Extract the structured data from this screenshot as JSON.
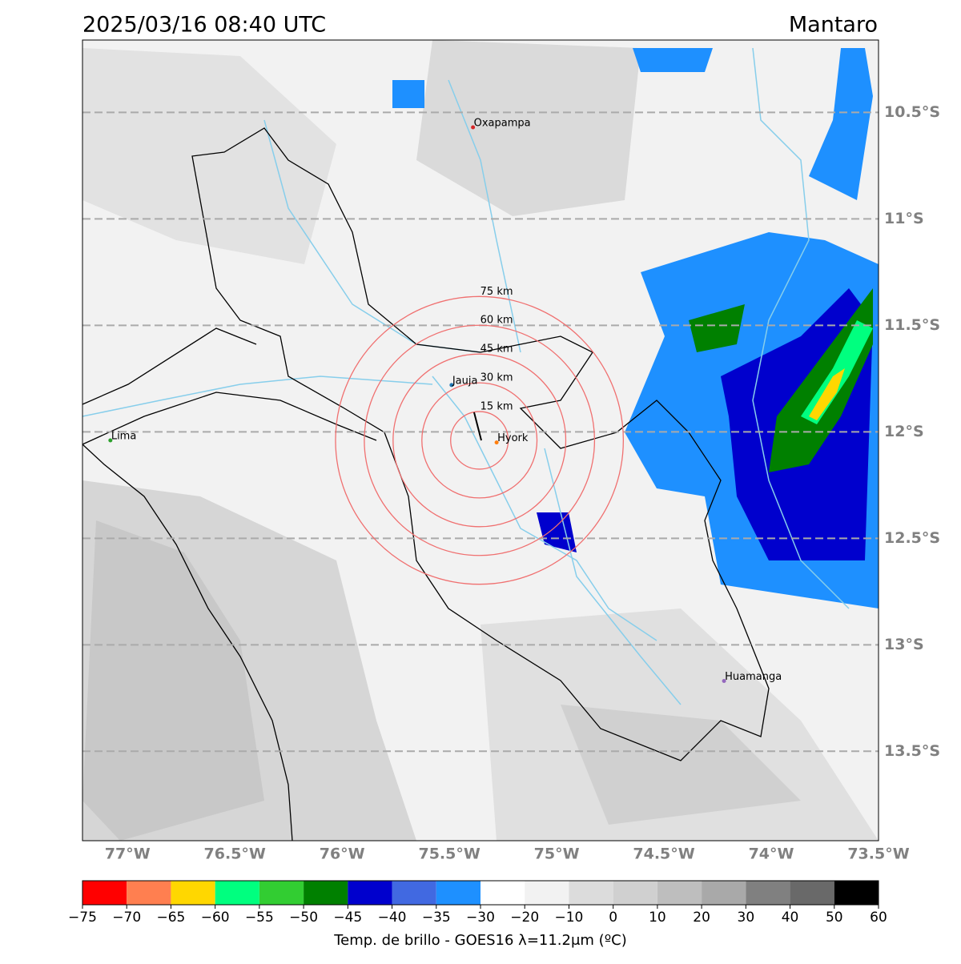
{
  "header": {
    "title": "2025/03/16 08:40 UTC",
    "region": "Mantaro"
  },
  "map": {
    "xlim": [
      -77.21,
      -73.5
    ],
    "ylim": [
      -13.92,
      -10.16
    ],
    "xticks": [
      {
        "value": -77,
        "label": "77°W"
      },
      {
        "value": -76.5,
        "label": "76.5°W"
      },
      {
        "value": -76,
        "label": "76°W"
      },
      {
        "value": -75.5,
        "label": "75.5°W"
      },
      {
        "value": -75,
        "label": "75°W"
      },
      {
        "value": -74.5,
        "label": "74.5°W"
      },
      {
        "value": -74,
        "label": "74°W"
      },
      {
        "value": -73.5,
        "label": "73.5°W"
      }
    ],
    "yticks": [
      {
        "value": -10.5,
        "label": "10.5°S"
      },
      {
        "value": -11,
        "label": "11°S"
      },
      {
        "value": -11.5,
        "label": "11.5°S"
      },
      {
        "value": -12,
        "label": "12°S"
      },
      {
        "value": -12.5,
        "label": "12.5°S"
      },
      {
        "value": -13,
        "label": "13°S"
      },
      {
        "value": -13.5,
        "label": "13.5°S"
      }
    ],
    "grid": true,
    "cities": [
      {
        "name": "Oxapampa",
        "lon": -75.39,
        "lat": -10.57,
        "color": "#d62728"
      },
      {
        "name": "Jauja",
        "lon": -75.49,
        "lat": -11.78,
        "color": "#1f77b4"
      },
      {
        "name": "Lima",
        "lon": -77.08,
        "lat": -12.04,
        "color": "#2ca02c"
      },
      {
        "name": "Hyork",
        "lon": -75.28,
        "lat": -12.05,
        "color": "#ff7f0e"
      },
      {
        "name": "Huamanga",
        "lon": -74.22,
        "lat": -13.17,
        "color": "#9467bd"
      }
    ],
    "rings": {
      "center_lon": -75.36,
      "center_lat": -12.04,
      "color": "#f07070",
      "items": [
        {
          "label": "15 km",
          "radius_km": 15
        },
        {
          "label": "30 km",
          "radius_km": 30
        },
        {
          "label": "45 km",
          "radius_km": 45
        },
        {
          "label": "60 km",
          "radius_km": 60
        },
        {
          "label": "75 km",
          "radius_km": 75
        }
      ]
    }
  },
  "colorbar": {
    "label": "Temp. de brillo - GOES16 λ=11.2μm (ºC)",
    "ticks": [
      {
        "value": -75,
        "label": "−75"
      },
      {
        "value": -70,
        "label": "−70"
      },
      {
        "value": -65,
        "label": "−65"
      },
      {
        "value": -60,
        "label": "−60"
      },
      {
        "value": -55,
        "label": "−55"
      },
      {
        "value": -50,
        "label": "−50"
      },
      {
        "value": -45,
        "label": "−45"
      },
      {
        "value": -40,
        "label": "−40"
      },
      {
        "value": -35,
        "label": "−35"
      },
      {
        "value": -30,
        "label": "−30"
      },
      {
        "value": -20,
        "label": "−20"
      },
      {
        "value": -10,
        "label": "−10"
      },
      0,
      10,
      20,
      30,
      40,
      50,
      60
    ],
    "colors": [
      "#ff0000",
      "#ff7f50",
      "#ffd700",
      "#00ff7f",
      "#32cd32",
      "#008000",
      "#0000cd",
      "#4169e1",
      "#1e90ff",
      "#ffffff",
      "#f2f2f2",
      "#dcdcdc",
      "#d0d0d0",
      "#bebebe",
      "#a9a9a9",
      "#808080",
      "#696969",
      "#000000"
    ]
  }
}
